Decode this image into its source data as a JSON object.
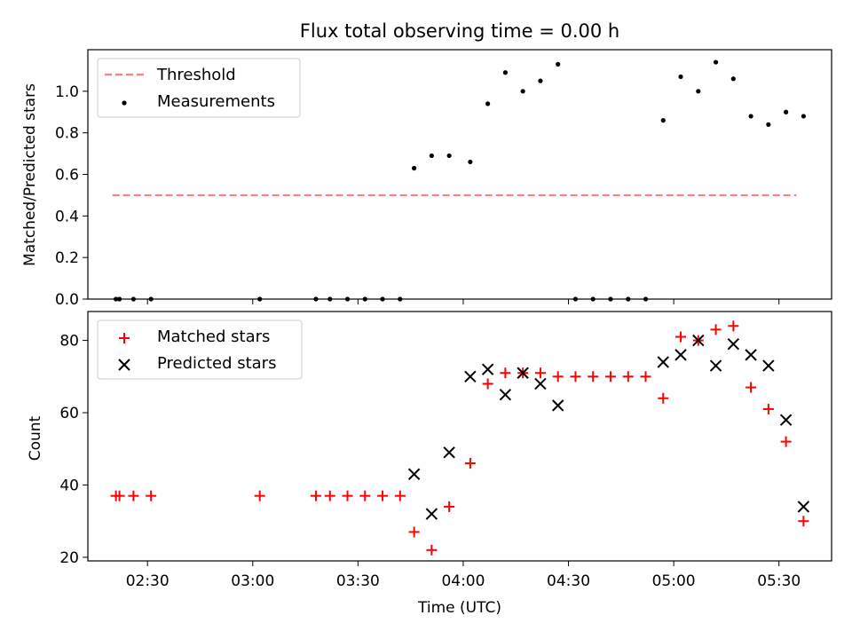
{
  "chart_data": [
    {
      "type": "scatter",
      "title": "Flux total observing time = 0.00 h",
      "ylabel": "Matched/Predicted stars",
      "xlabel": "",
      "ylim": [
        0,
        1.2
      ],
      "yticks": [
        "0.0",
        "0.2",
        "0.4",
        "0.6",
        "0.8",
        "1.0"
      ],
      "xlim": [
        "02:13",
        "05:45"
      ],
      "xticks": [
        "02:30",
        "03:00",
        "03:30",
        "04:00",
        "04:30",
        "05:00",
        "05:30"
      ],
      "legend_position": "top-left",
      "grid": false,
      "series": [
        {
          "name": "Threshold",
          "kind": "line",
          "style": "dashed",
          "color": "#ff7f7f",
          "x": [
            "02:20",
            "05:35"
          ],
          "y": [
            0.5,
            0.5
          ]
        },
        {
          "name": "Measurements",
          "kind": "scatter",
          "marker": "dot",
          "color": "#000000",
          "x": [
            "02:21",
            "02:22",
            "02:26",
            "02:31",
            "03:02",
            "03:18",
            "03:22",
            "03:27",
            "03:32",
            "03:37",
            "03:42",
            "03:46",
            "03:51",
            "03:56",
            "04:02",
            "04:07",
            "04:12",
            "04:17",
            "04:22",
            "04:27",
            "04:32",
            "04:37",
            "04:42",
            "04:47",
            "04:52",
            "04:57",
            "05:02",
            "05:07",
            "05:12",
            "05:17",
            "05:22",
            "05:27",
            "05:32",
            "05:37"
          ],
          "y": [
            0.0,
            0.0,
            0.0,
            0.0,
            0.0,
            0.0,
            0.0,
            0.0,
            0.0,
            0.0,
            0.0,
            0.63,
            0.69,
            0.69,
            0.66,
            0.94,
            1.09,
            1.0,
            1.05,
            1.13,
            0.0,
            0.0,
            0.0,
            0.0,
            0.0,
            0.86,
            1.07,
            1.0,
            1.14,
            1.06,
            0.88,
            0.84,
            0.9,
            0.88
          ]
        }
      ]
    },
    {
      "type": "scatter",
      "title": "",
      "ylabel": "Count",
      "xlabel": "Time (UTC)",
      "ylim": [
        19,
        88
      ],
      "yticks": [
        "20",
        "40",
        "60",
        "80"
      ],
      "xlim": [
        "02:13",
        "05:45"
      ],
      "xticks": [
        "02:30",
        "03:00",
        "03:30",
        "04:00",
        "04:30",
        "05:00",
        "05:30"
      ],
      "legend_position": "top-left",
      "grid": false,
      "series": [
        {
          "name": "Matched stars",
          "kind": "scatter",
          "marker": "plus",
          "color": "#ff0000",
          "x": [
            "02:21",
            "02:22",
            "02:26",
            "02:31",
            "03:02",
            "03:18",
            "03:22",
            "03:27",
            "03:32",
            "03:37",
            "03:42",
            "03:46",
            "03:51",
            "03:56",
            "04:02",
            "04:07",
            "04:12",
            "04:17",
            "04:22",
            "04:27",
            "04:32",
            "04:37",
            "04:42",
            "04:47",
            "04:52",
            "04:57",
            "05:02",
            "05:07",
            "05:12",
            "05:17",
            "05:22",
            "05:27",
            "05:32",
            "05:37"
          ],
          "y": [
            37,
            37,
            37,
            37,
            37,
            37,
            37,
            37,
            37,
            37,
            37,
            27,
            22,
            34,
            46,
            68,
            71,
            71,
            71,
            70,
            70,
            70,
            70,
            70,
            70,
            64,
            81,
            80,
            83,
            84,
            67,
            61,
            52,
            30
          ]
        },
        {
          "name": "Predicted stars",
          "kind": "scatter",
          "marker": "x",
          "color": "#000000",
          "x": [
            "03:46",
            "03:51",
            "03:56",
            "04:02",
            "04:07",
            "04:12",
            "04:17",
            "04:22",
            "04:27",
            "04:57",
            "05:02",
            "05:07",
            "05:12",
            "05:17",
            "05:22",
            "05:27",
            "05:32",
            "05:37"
          ],
          "y": [
            43,
            32,
            49,
            70,
            72,
            65,
            71,
            68,
            62,
            74,
            76,
            80,
            73,
            79,
            76,
            73,
            58,
            34
          ]
        }
      ]
    }
  ]
}
